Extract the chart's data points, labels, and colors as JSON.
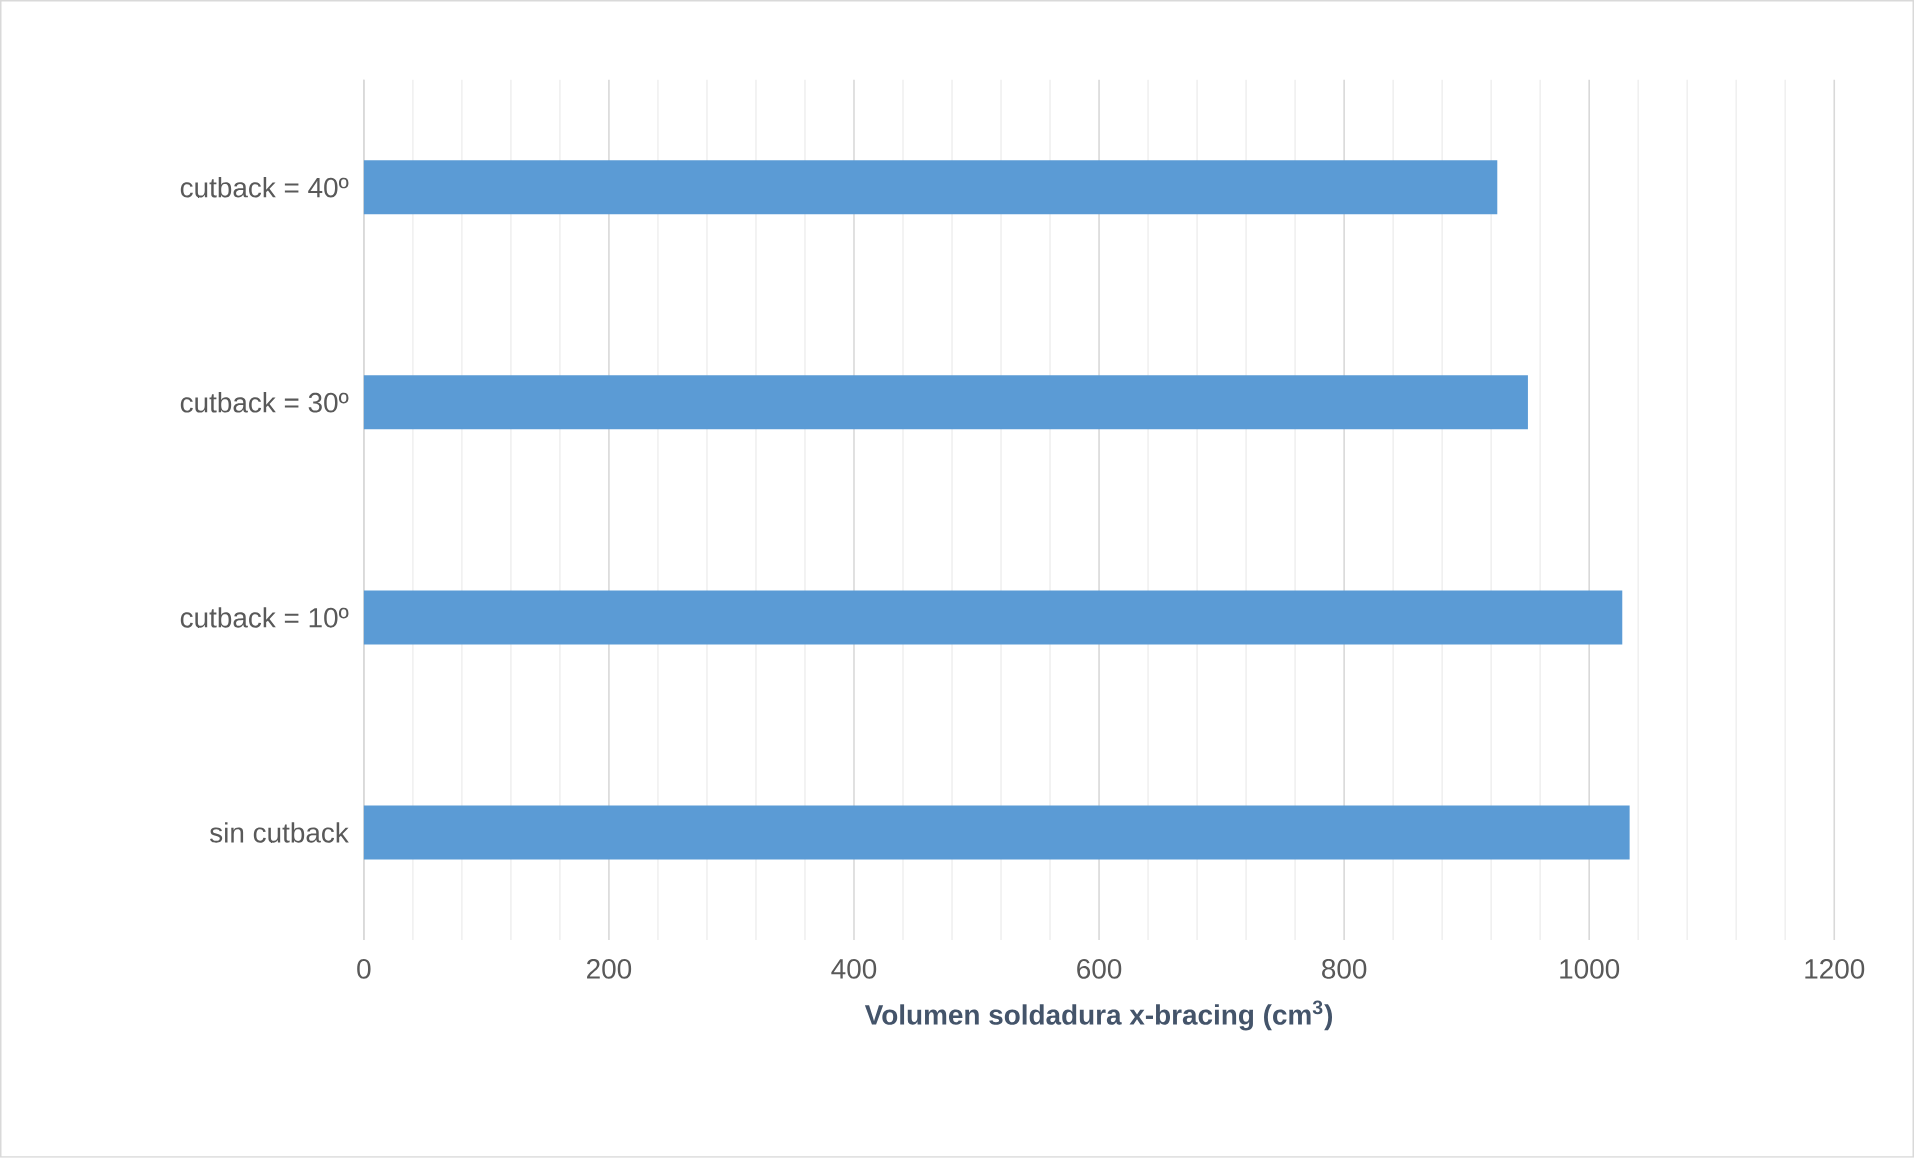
{
  "chart_data": {
    "type": "bar",
    "orientation": "horizontal",
    "xlabel": "Volumen soldadura x-bracing (cm$^{3}$)",
    "categories": [
      "cutback = 40º",
      "cutback = 30º",
      "cutback = 10º",
      "sin cutback"
    ],
    "values": [
      925,
      950,
      1027,
      1033
    ],
    "color": "#5b9bd5",
    "xlim": [
      0,
      1200
    ],
    "xticks": [
      0,
      200,
      400,
      600,
      800,
      1000,
      1200
    ],
    "grid": "x"
  }
}
